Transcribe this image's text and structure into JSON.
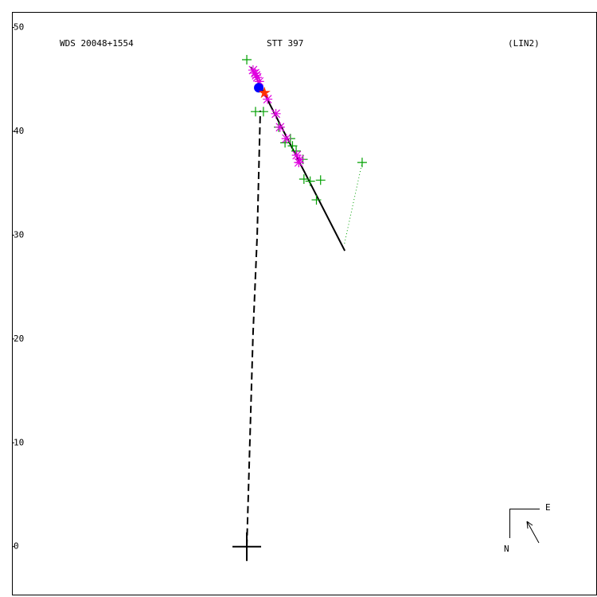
{
  "chart_data": {
    "type": "scatter",
    "title": "STT 397",
    "identifier": "WDS 20048+1554",
    "reference": "(LIN2)",
    "compass": {
      "east": "E",
      "north": "N"
    },
    "xlim": [
      -22.6,
      33.7
    ],
    "ylim": [
      -4.7,
      51.5
    ],
    "yticks": [
      0,
      10,
      20,
      30,
      40,
      50
    ],
    "series": [
      {
        "marker": "dashed-line",
        "color": "#000000",
        "x": [
          0,
          0.6,
          1.0,
          1.3
        ],
        "values": [
          0,
          20.5,
          30.0,
          42.0
        ]
      },
      {
        "marker": "dotted-line",
        "color": "#00a000",
        "x": [
          9.4,
          11.1
        ],
        "values": [
          29.2,
          37.0
        ]
      },
      {
        "marker": "solid-line",
        "color": "#000000",
        "x": [
          0.38,
          9.43
        ],
        "values": [
          46.2,
          28.5
        ]
      },
      {
        "marker": "plus",
        "color": "#00a000",
        "x": [
          0,
          0.84,
          1.6,
          3.07,
          3.68,
          4.2,
          4.4,
          4.75,
          5.4,
          5.5,
          6.1,
          7.1,
          6.7,
          11.1
        ],
        "values": [
          46.9,
          41.9,
          41.9,
          40.4,
          38.9,
          39.3,
          38.6,
          38.1,
          37.3,
          35.4,
          35.2,
          35.3,
          33.4,
          37.0
        ]
      },
      {
        "marker": "asterisk",
        "color": "#e000e0",
        "x": [
          0.6,
          0.8,
          1.0,
          1.2,
          0.9,
          2.0,
          2.8,
          3.2,
          3.8,
          4.8,
          5.1,
          5.0
        ],
        "values": [
          45.9,
          45.6,
          45.2,
          44.8,
          45.4,
          43.1,
          41.7,
          40.4,
          39.3,
          37.7,
          37.3,
          37.0
        ]
      },
      {
        "marker": "circle",
        "color": "#0000ff",
        "x": [
          1.15
        ],
        "values": [
          44.2
        ]
      },
      {
        "marker": "star",
        "color": "#ff3000",
        "x": [
          1.7
        ],
        "values": [
          43.7
        ]
      },
      {
        "marker": "cross",
        "color": "#000000",
        "x": [
          0
        ],
        "values": [
          0
        ]
      }
    ]
  }
}
